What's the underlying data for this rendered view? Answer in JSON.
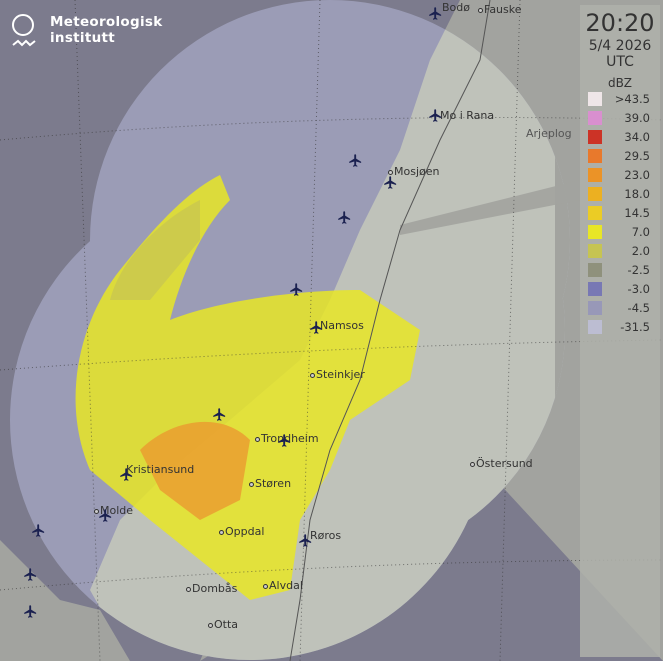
{
  "brand": {
    "line1": "Meteorologisk",
    "line2": "institutt"
  },
  "legend": {
    "time": "20:20",
    "date": "5/4 2026",
    "timezone": "UTC",
    "unit": "dBZ",
    "levels": [
      {
        "label": ">43.5",
        "color": "#efe6e8"
      },
      {
        "label": "39.0",
        "color": "#d98fcf"
      },
      {
        "label": "34.0",
        "color": "#cc3326"
      },
      {
        "label": "29.5",
        "color": "#e8792c"
      },
      {
        "label": "23.0",
        "color": "#eb9327"
      },
      {
        "label": "18.0",
        "color": "#ecb021"
      },
      {
        "label": "14.5",
        "color": "#ebcc25"
      },
      {
        "label": "7.0",
        "color": "#e8e626"
      },
      {
        "label": "2.0",
        "color": "#c6c452"
      },
      {
        "label": "-2.5",
        "color": "#8f917c"
      },
      {
        "label": "-3.0",
        "color": "#7878b4"
      },
      {
        "label": "-4.5",
        "color": "#9898b8"
      },
      {
        "label": "-31.5",
        "color": "#bcbdd2"
      }
    ]
  },
  "places": {
    "bodo": "Bodø",
    "fauske": "Fauske",
    "mo_i_rana": "Mo i Rana",
    "mosjoen": "Mosjøen",
    "namsos": "Namsos",
    "steinkjer": "Steinkjer",
    "trondheim": "Trondheim",
    "kristiansund": "Kristiansund",
    "molde": "Molde",
    "storen": "Støren",
    "oppdal": "Oppdal",
    "roros": "Røros",
    "dombas": "Dombås",
    "alvdal": "Alvdal",
    "otta": "Otta",
    "ostersund": "Östersund",
    "arjeplog": "Arjeplog"
  }
}
